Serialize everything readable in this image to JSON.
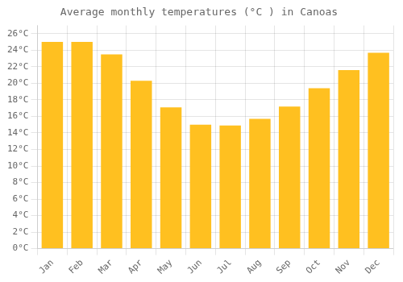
{
  "chart_data": {
    "type": "bar",
    "title": "Average monthly temperatures (°C ) in Canoas",
    "categories": [
      "Jan",
      "Feb",
      "Mar",
      "Apr",
      "May",
      "Jun",
      "Jul",
      "Aug",
      "Sep",
      "Oct",
      "Nov",
      "Dec"
    ],
    "values": [
      25.0,
      25.0,
      23.5,
      20.3,
      17.1,
      15.0,
      14.9,
      15.7,
      17.2,
      19.4,
      21.6,
      23.7
    ],
    "color": "#FFC020",
    "ylim": [
      0,
      27
    ],
    "yticks": [
      {
        "value": 0,
        "label": "0°C"
      },
      {
        "value": 2,
        "label": "2°C"
      },
      {
        "value": 4,
        "label": "4°C"
      },
      {
        "value": 6,
        "label": "6°C"
      },
      {
        "value": 8,
        "label": "8°C"
      },
      {
        "value": 10,
        "label": "10°C"
      },
      {
        "value": 12,
        "label": "12°C"
      },
      {
        "value": 14,
        "label": "14°C"
      },
      {
        "value": 16,
        "label": "16°C"
      },
      {
        "value": 18,
        "label": "18°C"
      },
      {
        "value": 20,
        "label": "20°C"
      },
      {
        "value": 22,
        "label": "22°C"
      },
      {
        "value": 24,
        "label": "24°C"
      },
      {
        "value": 26,
        "label": "26°C"
      }
    ],
    "grid": true
  }
}
